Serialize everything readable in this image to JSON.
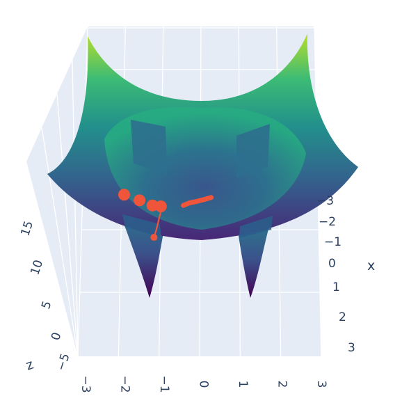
{
  "chart_data": {
    "type": "surface3d",
    "title": "",
    "colorscale": "viridis",
    "colors": {
      "pane": "#e5ecf6",
      "grid": "#ffffff",
      "trajectory": "#ef553b",
      "text": "#2a3f5f"
    },
    "axes": {
      "x": {
        "title": "x",
        "range": [
          -3,
          3
        ],
        "ticks": [
          "−3",
          "−2",
          "−1",
          "0",
          "1",
          "2",
          "3"
        ]
      },
      "y": {
        "title": "",
        "range": [
          -3,
          3
        ],
        "ticks": [
          "−3",
          "−2",
          "−1",
          "0",
          "1",
          "2",
          "3"
        ]
      },
      "z": {
        "title": "z",
        "range": [
          -5,
          19
        ],
        "ticks": [
          "−5",
          "0",
          "5",
          "10",
          "15"
        ]
      }
    },
    "surface": {
      "description_equation": "z = x^2 + y^2 - 10*(exp(-((x-1.5)^2+(y+1.5)^2)/0.1) + exp(-((x+1.5)^2+(y+1.5)^2)/0.1)) - 4*(exp(-((x-1.2)^2+(y-1.2)^2)/0.3) + exp(-((x+1.2)^2+(y-1.2)^2)/0.3))"
    },
    "series": [
      {
        "type": "scatter3d-markers",
        "points": [
          {
            "x": -2.9,
            "y": 2.3,
            "z": 7.5
          },
          {
            "x": -2.2,
            "y": 2.4,
            "z": 6.4
          },
          {
            "x": -1.6,
            "y": 2.5,
            "z": 5.4
          },
          {
            "x": -1.2,
            "y": 2.5,
            "z": 5.2
          }
        ]
      },
      {
        "type": "scatter3d-lines",
        "points": [
          {
            "x": -1.2,
            "y": 2.5,
            "z": 4.0
          },
          {
            "x": -1.3,
            "y": 2.0,
            "z": 1.0
          },
          {
            "x": -1.4,
            "y": 1.6,
            "z": -2.0
          },
          {
            "x": -1.5,
            "y": 1.5,
            "z": -4.0
          }
        ]
      },
      {
        "type": "scatter3d-lines",
        "points": [
          {
            "x": 0.5,
            "y": -0.5,
            "z": 1.2
          },
          {
            "x": 0.3,
            "y": -0.1,
            "z": 1.5
          },
          {
            "x": 0.1,
            "y": 0.3,
            "z": 1.9
          },
          {
            "x": -0.1,
            "y": 0.7,
            "z": 2.4
          },
          {
            "x": -0.3,
            "y": 1.2,
            "z": 2.8
          }
        ]
      }
    ]
  }
}
